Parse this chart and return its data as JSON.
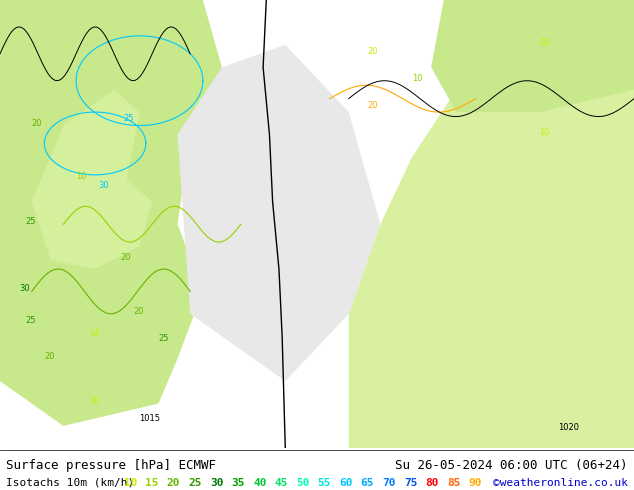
{
  "title_left": "Surface pressure [hPa] ECMWF",
  "title_right": "Su 26-05-2024 06:00 UTC (06+24)",
  "subtitle_left": "Isotachs 10m (km/h)",
  "credit": "©weatheronline.co.uk",
  "isotach_values": [
    10,
    15,
    20,
    25,
    30,
    35,
    40,
    45,
    50,
    55,
    60,
    65,
    70,
    75,
    80,
    85,
    90
  ],
  "isotach_colors": [
    "#c8f000",
    "#96d200",
    "#64b400",
    "#329600",
    "#00780a",
    "#00a000",
    "#00c832",
    "#00e664",
    "#00ffb4",
    "#00e6dc",
    "#00c8ff",
    "#00aaff",
    "#0078ff",
    "#0050e6",
    "#ff0000",
    "#ff6400",
    "#ffaa00"
  ],
  "background_color": "#e8f4d0",
  "map_background": "#f0f0f0",
  "bottom_bar_color": "#ffffff",
  "font_size_title": 9,
  "font_size_legend": 8,
  "fig_width": 6.34,
  "fig_height": 4.9,
  "dpi": 100
}
